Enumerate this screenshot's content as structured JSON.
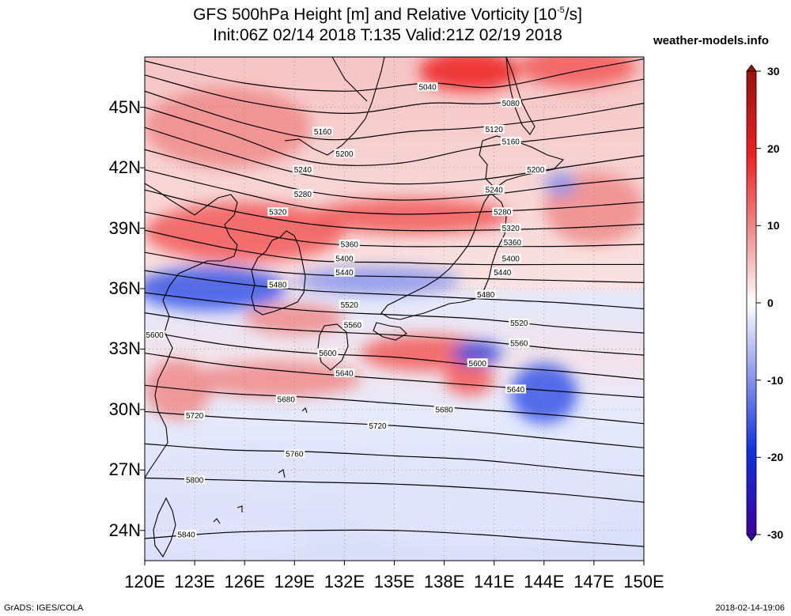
{
  "title": {
    "prefix": "GFS 500hPa Height [m] and Relative Vorticity [10",
    "exponent": "-5",
    "suffix": "/s]",
    "line2": "Init:06Z 02/14 2018 T:135 Valid:21Z 02/19 2018"
  },
  "brand": "weather-models.info",
  "footer": {
    "left": "GrADS: IGES/COLA",
    "right": "2018-02-14-19:06"
  },
  "map": {
    "lon_range": [
      120,
      150
    ],
    "lat_range": [
      22.5,
      47.5
    ],
    "lat_ticks": [
      {
        "value": 45,
        "label": "45N"
      },
      {
        "value": 42,
        "label": "42N"
      },
      {
        "value": 39,
        "label": "39N"
      },
      {
        "value": 36,
        "label": "36N"
      },
      {
        "value": 33,
        "label": "33N"
      },
      {
        "value": 30,
        "label": "30N"
      },
      {
        "value": 27,
        "label": "27N"
      },
      {
        "value": 24,
        "label": "24N"
      }
    ],
    "lon_ticks": [
      {
        "value": 120,
        "label": "120E"
      },
      {
        "value": 123,
        "label": "123E"
      },
      {
        "value": 126,
        "label": "126E"
      },
      {
        "value": 129,
        "label": "129E"
      },
      {
        "value": 132,
        "label": "132E"
      },
      {
        "value": 135,
        "label": "135E"
      },
      {
        "value": 138,
        "label": "138E"
      },
      {
        "value": 141,
        "label": "141E"
      },
      {
        "value": 144,
        "label": "144E"
      },
      {
        "value": 147,
        "label": "147E"
      },
      {
        "value": 150,
        "label": "150E"
      }
    ],
    "height_contours": [
      {
        "label": "5040",
        "points": [
          [
            120,
            47.3
          ],
          [
            126,
            46.2
          ],
          [
            132,
            45.8
          ],
          [
            137,
            46.2
          ],
          [
            141,
            46.0
          ],
          [
            146,
            46.8
          ],
          [
            150,
            47.4
          ]
        ]
      },
      {
        "label": "5080",
        "points": [
          [
            120,
            46.6
          ],
          [
            126,
            45.3
          ],
          [
            132,
            44.7
          ],
          [
            137,
            45.2
          ],
          [
            141,
            45.2
          ],
          [
            146,
            45.8
          ],
          [
            150,
            46.4
          ]
        ]
      },
      {
        "label": "5120",
        "points": [
          [
            120,
            45.8
          ],
          [
            126,
            44.2
          ],
          [
            131,
            43.4
          ],
          [
            136,
            43.8
          ],
          [
            140,
            44.0
          ],
          [
            145,
            44.5
          ],
          [
            150,
            45.2
          ]
        ]
      },
      {
        "label": "5160",
        "points": [
          [
            120,
            45.0
          ],
          [
            125,
            43.7
          ],
          [
            130,
            42.3
          ],
          [
            135,
            42.2
          ],
          [
            140,
            43.0
          ],
          [
            145,
            43.5
          ],
          [
            150,
            44.0
          ]
        ]
      },
      {
        "label": "5200",
        "points": [
          [
            120,
            44.0
          ],
          [
            125,
            42.7
          ],
          [
            130,
            41.6
          ],
          [
            135,
            41.2
          ],
          [
            140,
            41.4
          ],
          [
            145,
            42.0
          ],
          [
            150,
            42.6
          ]
        ]
      },
      {
        "label": "5240",
        "points": [
          [
            120,
            42.9
          ],
          [
            125,
            41.8
          ],
          [
            130,
            40.8
          ],
          [
            135,
            40.4
          ],
          [
            140,
            40.6
          ],
          [
            145,
            41.1
          ],
          [
            150,
            41.5
          ]
        ]
      },
      {
        "label": "5280",
        "points": [
          [
            120,
            41.9
          ],
          [
            125,
            40.9
          ],
          [
            130,
            40.0
          ],
          [
            135,
            39.7
          ],
          [
            140,
            39.8
          ],
          [
            145,
            40.0
          ],
          [
            150,
            40.3
          ]
        ]
      },
      {
        "label": "5320",
        "points": [
          [
            120,
            40.9
          ],
          [
            125,
            39.9
          ],
          [
            130,
            39.2
          ],
          [
            135,
            38.9
          ],
          [
            140,
            38.9
          ],
          [
            145,
            39.0
          ],
          [
            150,
            39.2
          ]
        ]
      },
      {
        "label": "5360",
        "points": [
          [
            120,
            39.8
          ],
          [
            125,
            39.0
          ],
          [
            130,
            38.3
          ],
          [
            135,
            38.1
          ],
          [
            140,
            38.1
          ],
          [
            145,
            38.1
          ],
          [
            150,
            38.2
          ]
        ]
      },
      {
        "label": "5400",
        "points": [
          [
            120,
            38.9
          ],
          [
            125,
            38.0
          ],
          [
            130,
            37.4
          ],
          [
            135,
            37.3
          ],
          [
            140,
            37.2
          ],
          [
            145,
            37.2
          ],
          [
            150,
            37.2
          ]
        ]
      },
      {
        "label": "5440",
        "points": [
          [
            120,
            37.8
          ],
          [
            125,
            37.1
          ],
          [
            130,
            36.7
          ],
          [
            135,
            36.6
          ],
          [
            140,
            36.5
          ],
          [
            145,
            36.4
          ],
          [
            150,
            36.3
          ]
        ]
      },
      {
        "label": "5480",
        "points": [
          [
            120,
            36.9
          ],
          [
            125,
            36.3
          ],
          [
            130,
            35.9
          ],
          [
            135,
            35.7
          ],
          [
            140,
            35.5
          ],
          [
            145,
            35.3
          ],
          [
            150,
            35.0
          ]
        ]
      },
      {
        "label": "5520",
        "points": [
          [
            120,
            35.8
          ],
          [
            125,
            35.3
          ],
          [
            130,
            34.9
          ],
          [
            135,
            34.7
          ],
          [
            140,
            34.5
          ],
          [
            145,
            34.1
          ],
          [
            150,
            33.8
          ]
        ]
      },
      {
        "label": "5560",
        "points": [
          [
            120,
            34.8
          ],
          [
            125,
            34.2
          ],
          [
            130,
            33.9
          ],
          [
            135,
            33.7
          ],
          [
            140,
            33.4
          ],
          [
            145,
            33.0
          ],
          [
            150,
            32.7
          ]
        ]
      },
      {
        "label": "5600",
        "points": [
          [
            120,
            33.9
          ],
          [
            125,
            33.2
          ],
          [
            130,
            32.8
          ],
          [
            135,
            32.6
          ],
          [
            140,
            32.2
          ],
          [
            145,
            31.9
          ],
          [
            150,
            31.5
          ]
        ]
      },
      {
        "label": "5640",
        "points": [
          [
            120,
            32.8
          ],
          [
            125,
            32.2
          ],
          [
            130,
            31.8
          ],
          [
            135,
            31.5
          ],
          [
            140,
            31.2
          ],
          [
            145,
            30.9
          ],
          [
            150,
            30.6
          ]
        ]
      },
      {
        "label": "5680",
        "points": [
          [
            120,
            31.2
          ],
          [
            125,
            30.8
          ],
          [
            130,
            30.6
          ],
          [
            135,
            30.3
          ],
          [
            140,
            30.0
          ],
          [
            145,
            29.7
          ],
          [
            150,
            29.3
          ]
        ]
      },
      {
        "label": "5720",
        "points": [
          [
            120,
            29.9
          ],
          [
            125,
            29.6
          ],
          [
            130,
            29.4
          ],
          [
            135,
            29.2
          ],
          [
            140,
            28.9
          ],
          [
            145,
            28.5
          ],
          [
            150,
            28.1
          ]
        ]
      },
      {
        "label": "5760",
        "points": [
          [
            120,
            28.3
          ],
          [
            125,
            28.0
          ],
          [
            130,
            27.9
          ],
          [
            135,
            27.7
          ],
          [
            140,
            27.5
          ],
          [
            145,
            27.1
          ],
          [
            150,
            26.7
          ]
        ]
      },
      {
        "label": "5800",
        "points": [
          [
            120,
            26.6
          ],
          [
            125,
            26.5
          ],
          [
            130,
            26.4
          ],
          [
            135,
            26.3
          ],
          [
            140,
            26.1
          ],
          [
            145,
            25.8
          ],
          [
            150,
            25.4
          ]
        ]
      },
      {
        "label": "5840",
        "points": [
          [
            120,
            23.6
          ],
          [
            125,
            23.9
          ],
          [
            130,
            24.0
          ],
          [
            135,
            24.0
          ],
          [
            140,
            23.8
          ],
          [
            145,
            23.5
          ],
          [
            150,
            23.2
          ]
        ]
      }
    ],
    "contour_labels": [
      {
        "text": "5040",
        "lon": 137.0,
        "lat": 46.0
      },
      {
        "text": "5080",
        "lon": 142.0,
        "lat": 45.2
      },
      {
        "text": "5120",
        "lon": 141.0,
        "lat": 43.9
      },
      {
        "text": "5160",
        "lon": 130.7,
        "lat": 43.8
      },
      {
        "text": "5160",
        "lon": 142.0,
        "lat": 43.3
      },
      {
        "text": "5200",
        "lon": 132.0,
        "lat": 42.7
      },
      {
        "text": "5200",
        "lon": 143.5,
        "lat": 41.9
      },
      {
        "text": "5240",
        "lon": 129.5,
        "lat": 41.9
      },
      {
        "text": "5240",
        "lon": 141.0,
        "lat": 40.9
      },
      {
        "text": "5280",
        "lon": 129.5,
        "lat": 40.7
      },
      {
        "text": "5280",
        "lon": 141.5,
        "lat": 39.8
      },
      {
        "text": "5320",
        "lon": 128.0,
        "lat": 39.8
      },
      {
        "text": "5320",
        "lon": 142.0,
        "lat": 39.0
      },
      {
        "text": "5360",
        "lon": 132.3,
        "lat": 38.2
      },
      {
        "text": "5360",
        "lon": 142.1,
        "lat": 38.3
      },
      {
        "text": "5400",
        "lon": 132.0,
        "lat": 37.5
      },
      {
        "text": "5400",
        "lon": 142.0,
        "lat": 37.5
      },
      {
        "text": "5440",
        "lon": 132.0,
        "lat": 36.8
      },
      {
        "text": "5440",
        "lon": 141.5,
        "lat": 36.8
      },
      {
        "text": "5480",
        "lon": 128.0,
        "lat": 36.2
      },
      {
        "text": "5480",
        "lon": 140.5,
        "lat": 35.7
      },
      {
        "text": "5520",
        "lon": 132.3,
        "lat": 35.2
      },
      {
        "text": "5520",
        "lon": 142.5,
        "lat": 34.3
      },
      {
        "text": "5560",
        "lon": 132.5,
        "lat": 34.2
      },
      {
        "text": "5560",
        "lon": 142.5,
        "lat": 33.3
      },
      {
        "text": "5600",
        "lon": 120.6,
        "lat": 33.7
      },
      {
        "text": "5600",
        "lon": 131.0,
        "lat": 32.8
      },
      {
        "text": "5600",
        "lon": 140.0,
        "lat": 32.3
      },
      {
        "text": "5640",
        "lon": 132.0,
        "lat": 31.8
      },
      {
        "text": "5640",
        "lon": 142.3,
        "lat": 31.0
      },
      {
        "text": "5680",
        "lon": 128.5,
        "lat": 30.5
      },
      {
        "text": "5680",
        "lon": 138.0,
        "lat": 30.0
      },
      {
        "text": "5720",
        "lon": 123.0,
        "lat": 29.7
      },
      {
        "text": "5720",
        "lon": 134.0,
        "lat": 29.2
      },
      {
        "text": "5760",
        "lon": 129.0,
        "lat": 27.8
      },
      {
        "text": "5800",
        "lon": 123.0,
        "lat": 26.5
      },
      {
        "text": "5840",
        "lon": 122.5,
        "lat": 23.8
      }
    ],
    "vorticity_anomalies": [
      {
        "lon": 139.5,
        "lat": 46.8,
        "rx": 3.0,
        "ry": 1.0,
        "value": 20
      },
      {
        "lon": 146.0,
        "lat": 47.0,
        "rx": 3.5,
        "ry": 1.0,
        "value": 12
      },
      {
        "lon": 125.0,
        "lat": 44.0,
        "rx": 5.0,
        "ry": 2.0,
        "value": 8
      },
      {
        "lon": 136.0,
        "lat": 39.6,
        "rx": 6.0,
        "ry": 0.9,
        "value": 14
      },
      {
        "lon": 126.0,
        "lat": 38.8,
        "rx": 6.0,
        "ry": 1.5,
        "value": 10
      },
      {
        "lon": 147.0,
        "lat": 40.0,
        "rx": 3.0,
        "ry": 1.8,
        "value": 8
      },
      {
        "lon": 124.0,
        "lat": 36.0,
        "rx": 4.5,
        "ry": 1.1,
        "value": -14
      },
      {
        "lon": 134.0,
        "lat": 36.4,
        "rx": 5.0,
        "ry": 0.7,
        "value": -8
      },
      {
        "lon": 129.0,
        "lat": 34.5,
        "rx": 3.0,
        "ry": 0.8,
        "value": 8
      },
      {
        "lon": 137.0,
        "lat": 32.8,
        "rx": 4.0,
        "ry": 0.9,
        "value": 10
      },
      {
        "lon": 139.5,
        "lat": 31.5,
        "rx": 1.5,
        "ry": 0.8,
        "value": 16
      },
      {
        "lon": 140.0,
        "lat": 32.8,
        "rx": 1.5,
        "ry": 0.6,
        "value": -16
      },
      {
        "lon": 144.0,
        "lat": 30.8,
        "rx": 2.0,
        "ry": 1.5,
        "value": -14
      },
      {
        "lon": 128.0,
        "lat": 31.5,
        "rx": 5.0,
        "ry": 0.9,
        "value": 8
      },
      {
        "lon": 122.0,
        "lat": 31.0,
        "rx": 2.0,
        "ry": 1.5,
        "value": 6
      },
      {
        "lon": 145.0,
        "lat": 41.2,
        "rx": 1.0,
        "ry": 0.6,
        "value": -10
      },
      {
        "lon": 128.0,
        "lat": 27.0,
        "rx": 7.0,
        "ry": 1.2,
        "value": -5
      },
      {
        "lon": 140.0,
        "lat": 25.0,
        "rx": 8.0,
        "ry": 2.0,
        "value": -4
      },
      {
        "lon": 125.0,
        "lat": 23.5,
        "rx": 5.0,
        "ry": 1.2,
        "value": -5
      }
    ],
    "colorbar": {
      "min": -30,
      "max": 30,
      "labels": [
        {
          "value": 30,
          "label": "30"
        },
        {
          "value": 20,
          "label": "20"
        },
        {
          "value": 10,
          "label": "10"
        },
        {
          "value": 0,
          "label": "0"
        },
        {
          "value": -10,
          "label": "-10"
        },
        {
          "value": -20,
          "label": "-20"
        },
        {
          "value": -30,
          "label": "-30"
        }
      ],
      "colors": {
        "neg_max": "#3c00a0",
        "neg_strong": "#1030e0",
        "neg_mid": "#8a96ee",
        "neg_light": "#dfe4fb",
        "zero": "#ffffff",
        "pos_light": "#fbe0e0",
        "pos_mid": "#f08a8a",
        "pos_strong": "#ee2020",
        "pos_max": "#9a1010"
      }
    }
  }
}
